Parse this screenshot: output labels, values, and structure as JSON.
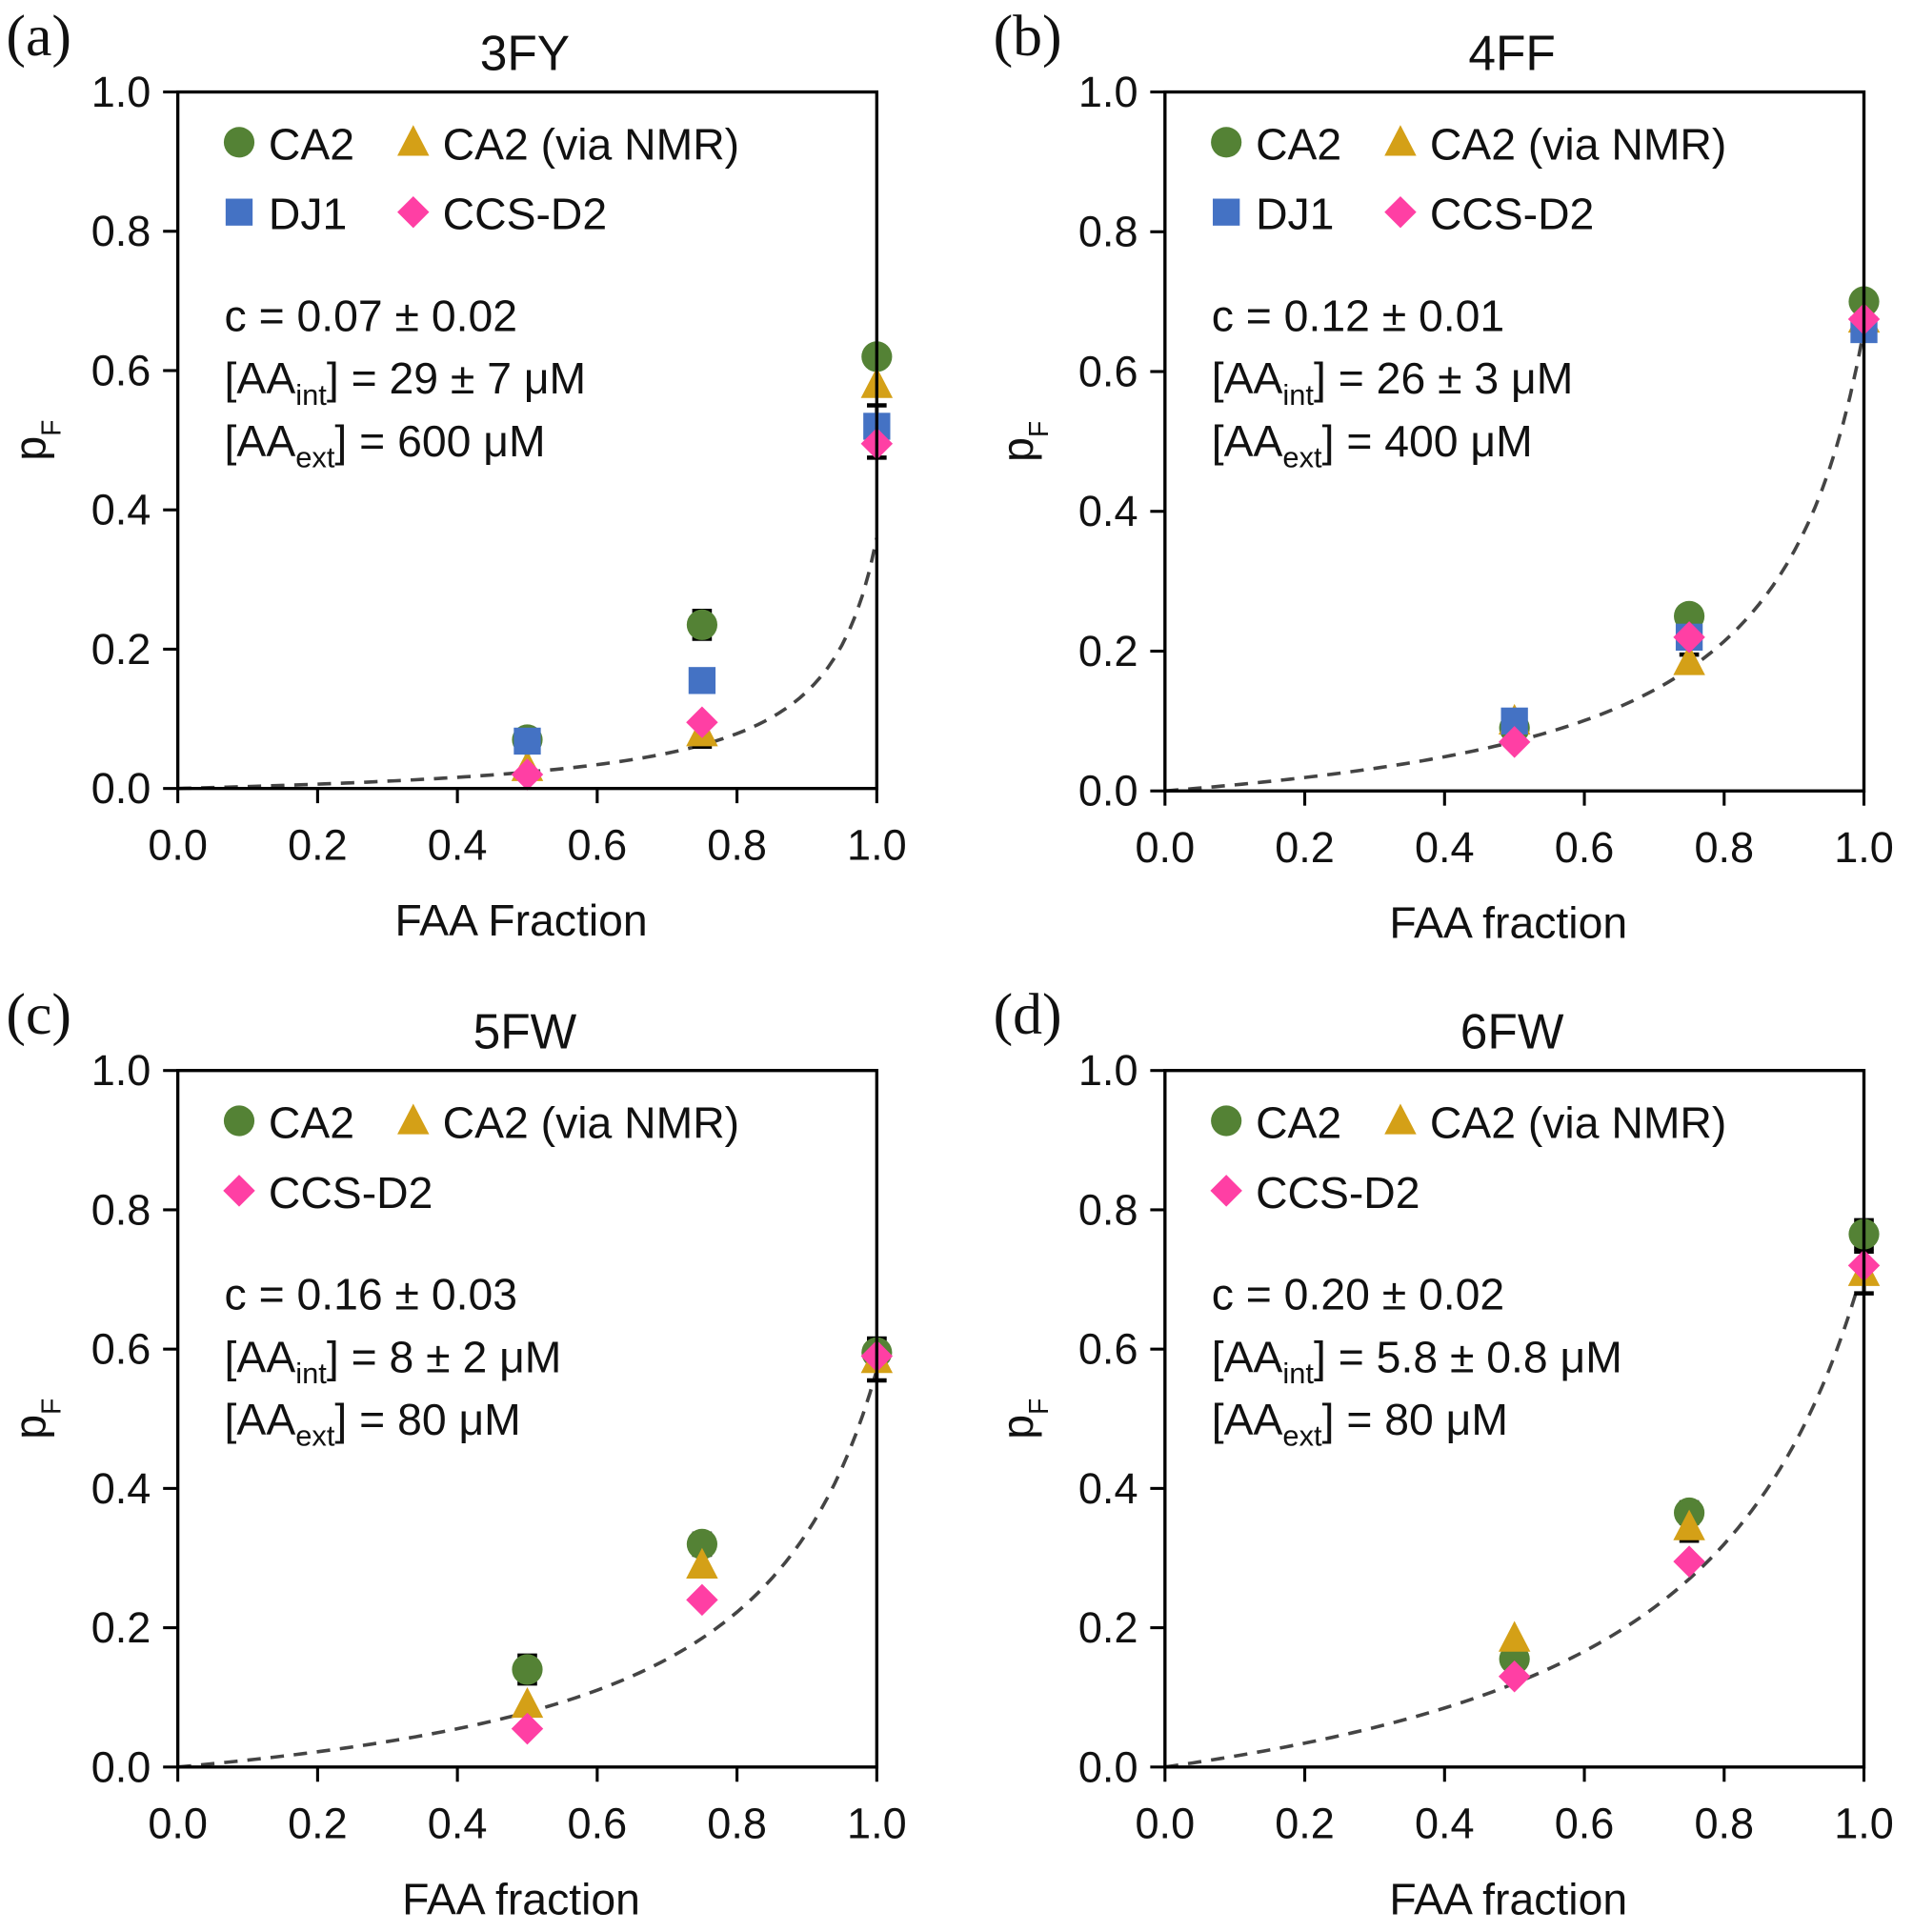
{
  "chart_data": [
    {
      "type": "scatter",
      "panel": "(a)",
      "title": "3FY",
      "xlabel": "FAA Fraction",
      "ylabel": "p",
      "ylabel_sub": "F",
      "xlim": [
        0,
        1
      ],
      "ylim": [
        0,
        1
      ],
      "xticks": [
        "0.0",
        "0.2",
        "0.4",
        "0.6",
        "0.8",
        "1.0"
      ],
      "yticks": [
        "0.0",
        "0.2",
        "0.4",
        "0.6",
        "0.8",
        "1.0"
      ],
      "grid": false,
      "legend_position": "top-left",
      "annotations": [
        {
          "pre": "c = 0.07 ± 0.02",
          "sub": "",
          "post": ""
        },
        {
          "pre": "[AA",
          "sub": "int",
          "post": "] = 29 ± 7 μM"
        },
        {
          "pre": "[AA",
          "sub": "ext",
          "post": "] = 600 μM"
        }
      ],
      "fit": {
        "style": "dashed",
        "c": 0.07
      },
      "series": [
        {
          "name": "CA2",
          "marker": "circle",
          "color": "#548235",
          "points": [
            [
              0.5,
              0.07
            ],
            [
              0.75,
              0.235
            ],
            [
              1.0,
              0.62
            ]
          ],
          "err": [
            0.005,
            0.02,
            0.01
          ]
        },
        {
          "name": "CA2 (via NMR)",
          "marker": "triangle",
          "color": "#D4A017",
          "points": [
            [
              0.5,
              0.03
            ],
            [
              0.75,
              0.08
            ],
            [
              1.0,
              0.58
            ]
          ],
          "err": [
            0,
            0.02,
            0
          ]
        },
        {
          "name": "DJ1",
          "marker": "square",
          "color": "#4472C4",
          "points": [
            [
              0.5,
              0.068
            ],
            [
              0.75,
              0.155
            ],
            [
              1.0,
              0.52
            ]
          ],
          "err": [
            0,
            0,
            0.03
          ]
        },
        {
          "name": "CCS-D2",
          "marker": "diamond",
          "color": "#FF3FA4",
          "points": [
            [
              0.5,
              0.02
            ],
            [
              0.75,
              0.095
            ],
            [
              1.0,
              0.495
            ]
          ],
          "err": [
            0,
            0,
            0.02
          ]
        }
      ]
    },
    {
      "type": "scatter",
      "panel": "(b)",
      "title": "4FF",
      "xlabel": "FAA fraction",
      "ylabel": "p",
      "ylabel_sub": "F",
      "xlim": [
        0,
        1
      ],
      "ylim": [
        0,
        1
      ],
      "xticks": [
        "0.0",
        "0.2",
        "0.4",
        "0.6",
        "0.8",
        "1.0"
      ],
      "yticks": [
        "0.0",
        "0.2",
        "0.4",
        "0.6",
        "0.8",
        "1.0"
      ],
      "grid": false,
      "legend_position": "top-left",
      "annotations": [
        {
          "pre": "c = 0.12 ± 0.01",
          "sub": "",
          "post": ""
        },
        {
          "pre": "[AA",
          "sub": "int",
          "post": "] = 26 ± 3 μM"
        },
        {
          "pre": "[AA",
          "sub": "ext",
          "post": "] = 400 μM"
        }
      ],
      "fit": {
        "style": "dashed",
        "c": 0.12
      },
      "series": [
        {
          "name": "CA2",
          "marker": "circle",
          "color": "#548235",
          "points": [
            [
              0.5,
              0.09
            ],
            [
              0.75,
              0.25
            ],
            [
              1.0,
              0.7
            ]
          ],
          "err": [
            0,
            0.01,
            0.01
          ]
        },
        {
          "name": "CA2 (via NMR)",
          "marker": "triangle",
          "color": "#D4A017",
          "points": [
            [
              0.5,
              0.1
            ],
            [
              0.75,
              0.185
            ],
            [
              1.0,
              0.675
            ]
          ],
          "err": [
            0,
            0.01,
            0
          ]
        },
        {
          "name": "DJ1",
          "marker": "square",
          "color": "#4472C4",
          "points": [
            [
              0.5,
              0.1
            ],
            [
              0.75,
              0.22
            ],
            [
              1.0,
              0.66
            ]
          ],
          "err": [
            0,
            0,
            0
          ]
        },
        {
          "name": "CCS-D2",
          "marker": "diamond",
          "color": "#FF3FA4",
          "points": [
            [
              0.5,
              0.07
            ],
            [
              0.75,
              0.22
            ],
            [
              1.0,
              0.675
            ]
          ],
          "err": [
            0,
            0,
            0
          ]
        }
      ]
    },
    {
      "type": "scatter",
      "panel": "(c)",
      "title": "5FW",
      "xlabel": "FAA fraction",
      "ylabel": "p",
      "ylabel_sub": "F",
      "xlim": [
        0,
        1
      ],
      "ylim": [
        0,
        1
      ],
      "xticks": [
        "0.0",
        "0.2",
        "0.4",
        "0.6",
        "0.8",
        "1.0"
      ],
      "yticks": [
        "0.0",
        "0.2",
        "0.4",
        "0.6",
        "0.8",
        "1.0"
      ],
      "grid": false,
      "legend_position": "top-left",
      "annotations": [
        {
          "pre": "c = 0.16 ± 0.03",
          "sub": "",
          "post": ""
        },
        {
          "pre": "[AA",
          "sub": "int",
          "post": "] = 8 ± 2 μM"
        },
        {
          "pre": "[AA",
          "sub": "ext",
          "post": "] = 80 μM"
        }
      ],
      "fit": {
        "style": "dashed",
        "c": 0.16
      },
      "series": [
        {
          "name": "CA2",
          "marker": "circle",
          "color": "#548235",
          "points": [
            [
              0.5,
              0.14
            ],
            [
              0.75,
              0.32
            ],
            [
              1.0,
              0.595
            ]
          ],
          "err": [
            0.02,
            0.015,
            0.02
          ]
        },
        {
          "name": "CA2 (via NMR)",
          "marker": "triangle",
          "color": "#D4A017",
          "points": [
            [
              0.5,
              0.09
            ],
            [
              0.75,
              0.29
            ],
            [
              1.0,
              0.585
            ]
          ],
          "err": [
            0,
            0.015,
            0.03
          ]
        },
        {
          "name": "CCS-D2",
          "marker": "diamond",
          "color": "#FF3FA4",
          "points": [
            [
              0.5,
              0.055
            ],
            [
              0.75,
              0.24
            ],
            [
              1.0,
              0.59
            ]
          ],
          "err": [
            0,
            0,
            0
          ]
        }
      ]
    },
    {
      "type": "scatter",
      "panel": "(d)",
      "title": "6FW",
      "xlabel": "FAA fraction",
      "ylabel": "p",
      "ylabel_sub": "F",
      "xlim": [
        0,
        1
      ],
      "ylim": [
        0,
        1
      ],
      "xticks": [
        "0.0",
        "0.2",
        "0.4",
        "0.6",
        "0.8",
        "1.0"
      ],
      "yticks": [
        "0.0",
        "0.2",
        "0.4",
        "0.6",
        "0.8",
        "1.0"
      ],
      "grid": false,
      "legend_position": "top-left",
      "annotations": [
        {
          "pre": "c = 0.20 ± 0.02",
          "sub": "",
          "post": ""
        },
        {
          "pre": "[AA",
          "sub": "int",
          "post": "] = 5.8 ± 0.8 μM"
        },
        {
          "pre": "[AA",
          "sub": "ext",
          "post": "] = 80 μM"
        }
      ],
      "fit": {
        "style": "dashed",
        "c": 0.2
      },
      "series": [
        {
          "name": "CA2",
          "marker": "circle",
          "color": "#548235",
          "points": [
            [
              0.5,
              0.155
            ],
            [
              0.75,
              0.365
            ],
            [
              1.0,
              0.765
            ]
          ],
          "err": [
            0,
            0.015,
            0.02
          ]
        },
        {
          "name": "CA2 (via NMR)",
          "marker": "triangle",
          "color": "#D4A017",
          "points": [
            [
              0.5,
              0.185
            ],
            [
              0.75,
              0.345
            ],
            [
              1.0,
              0.71
            ]
          ],
          "err": [
            0,
            0.02,
            0.03
          ]
        },
        {
          "name": "CCS-D2",
          "marker": "diamond",
          "color": "#FF3FA4",
          "points": [
            [
              0.5,
              0.13
            ],
            [
              0.75,
              0.295
            ],
            [
              1.0,
              0.72
            ]
          ],
          "err": [
            0,
            0,
            0
          ]
        }
      ]
    }
  ]
}
